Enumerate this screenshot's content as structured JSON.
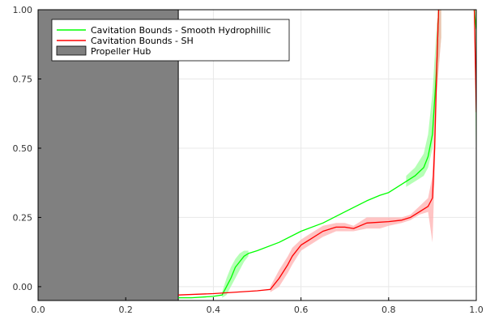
{
  "chart_data": {
    "type": "line",
    "title": "",
    "xlabel": "",
    "ylabel": "",
    "xlim": [
      0,
      1
    ],
    "ylim": [
      -0.05,
      1
    ],
    "grid": true,
    "legend_position": "top-left",
    "x_ticks": [
      {
        "value": 0.0,
        "label": "0.0"
      },
      {
        "value": 0.2,
        "label": "0.2"
      },
      {
        "value": 0.4,
        "label": "0.4"
      },
      {
        "value": 0.6,
        "label": "0.6"
      },
      {
        "value": 0.8,
        "label": "0.8"
      },
      {
        "value": 1.0,
        "label": "1.0"
      }
    ],
    "y_ticks": [
      {
        "value": 0.0,
        "label": "0.00"
      },
      {
        "value": 0.25,
        "label": "0.25"
      },
      {
        "value": 0.5,
        "label": "0.50"
      },
      {
        "value": 0.75,
        "label": "0.75"
      },
      {
        "value": 1.0,
        "label": "1.00"
      }
    ],
    "hub": {
      "name": "Propeller Hub",
      "x_range": [
        0.0,
        0.32
      ],
      "color": "#808080"
    },
    "series": [
      {
        "name": "Cavitation Bounds - Smooth Hydrophillic",
        "color": "#00ff00",
        "band_color": "#9cff9c",
        "points": [
          [
            0.32,
            -0.04
          ],
          [
            0.35,
            -0.04
          ],
          [
            0.4,
            -0.035
          ],
          [
            0.42,
            -0.03
          ],
          [
            0.43,
            0.0
          ],
          [
            0.44,
            0.03
          ],
          [
            0.45,
            0.07
          ],
          [
            0.46,
            0.09
          ],
          [
            0.47,
            0.11
          ],
          [
            0.48,
            0.12
          ],
          [
            0.5,
            0.13
          ],
          [
            0.55,
            0.16
          ],
          [
            0.6,
            0.2
          ],
          [
            0.65,
            0.23
          ],
          [
            0.7,
            0.27
          ],
          [
            0.75,
            0.31
          ],
          [
            0.78,
            0.33
          ],
          [
            0.8,
            0.34
          ],
          [
            0.83,
            0.37
          ],
          [
            0.86,
            0.4
          ],
          [
            0.88,
            0.43
          ],
          [
            0.89,
            0.47
          ],
          [
            0.9,
            0.55
          ],
          [
            0.91,
            0.8
          ],
          [
            0.915,
            1.05
          ]
        ],
        "band": [
          [
            0.42,
            -0.04,
            -0.02
          ],
          [
            0.43,
            -0.03,
            0.03
          ],
          [
            0.44,
            0.0,
            0.07
          ],
          [
            0.45,
            0.03,
            0.1
          ],
          [
            0.46,
            0.06,
            0.12
          ],
          [
            0.47,
            0.09,
            0.13
          ],
          [
            0.48,
            0.11,
            0.13
          ],
          [
            0.84,
            0.36,
            0.4
          ],
          [
            0.86,
            0.38,
            0.43
          ],
          [
            0.88,
            0.4,
            0.48
          ],
          [
            0.89,
            0.43,
            0.55
          ],
          [
            0.9,
            0.5,
            0.7
          ],
          [
            0.91,
            0.72,
            0.95
          ],
          [
            0.92,
            0.9,
            1.05
          ]
        ]
      },
      {
        "name": "Cavitation Bounds - SH",
        "color": "#ff0000",
        "band_color": "#ffb0b0",
        "points": [
          [
            0.32,
            -0.03
          ],
          [
            0.4,
            -0.025
          ],
          [
            0.5,
            -0.015
          ],
          [
            0.53,
            -0.01
          ],
          [
            0.55,
            0.03
          ],
          [
            0.57,
            0.08
          ],
          [
            0.58,
            0.11
          ],
          [
            0.6,
            0.15
          ],
          [
            0.62,
            0.17
          ],
          [
            0.65,
            0.2
          ],
          [
            0.68,
            0.215
          ],
          [
            0.7,
            0.215
          ],
          [
            0.72,
            0.21
          ],
          [
            0.75,
            0.23
          ],
          [
            0.8,
            0.235
          ],
          [
            0.83,
            0.24
          ],
          [
            0.85,
            0.25
          ],
          [
            0.87,
            0.27
          ],
          [
            0.89,
            0.29
          ],
          [
            0.9,
            0.32
          ],
          [
            0.905,
            0.5
          ],
          [
            0.91,
            0.8
          ],
          [
            0.915,
            1.05
          ]
        ],
        "band": [
          [
            0.53,
            -0.02,
            0.0
          ],
          [
            0.55,
            0.0,
            0.06
          ],
          [
            0.57,
            0.05,
            0.11
          ],
          [
            0.58,
            0.08,
            0.14
          ],
          [
            0.6,
            0.13,
            0.17
          ],
          [
            0.62,
            0.15,
            0.19
          ],
          [
            0.65,
            0.18,
            0.22
          ],
          [
            0.68,
            0.2,
            0.23
          ],
          [
            0.7,
            0.2,
            0.23
          ],
          [
            0.72,
            0.2,
            0.22
          ],
          [
            0.75,
            0.21,
            0.25
          ],
          [
            0.78,
            0.21,
            0.25
          ],
          [
            0.8,
            0.22,
            0.25
          ],
          [
            0.83,
            0.23,
            0.25
          ],
          [
            0.85,
            0.24,
            0.26
          ],
          [
            0.87,
            0.26,
            0.29
          ],
          [
            0.89,
            0.27,
            0.32
          ],
          [
            0.9,
            0.16,
            0.4
          ],
          [
            0.905,
            0.4,
            0.7
          ],
          [
            0.91,
            0.7,
            0.95
          ],
          [
            0.92,
            0.9,
            1.05
          ]
        ]
      },
      {
        "name": "",
        "color": "#00ff00",
        "band_color": "#9cff9c",
        "points": [
          [
            0.995,
            1.0
          ],
          [
            1.0,
            0.93
          ]
        ],
        "band": [
          [
            0.995,
            0.98,
            1.0
          ],
          [
            1.0,
            0.4,
            1.0
          ]
        ]
      },
      {
        "name": "",
        "color": "#ff0000",
        "band_color": "#ffb0b0",
        "points": [
          [
            0.995,
            1.05
          ],
          [
            1.0,
            0.63
          ]
        ],
        "band": [
          [
            0.995,
            0.98,
            1.0
          ],
          [
            1.0,
            0.55,
            0.72
          ]
        ]
      }
    ]
  },
  "legend": {
    "items": [
      {
        "label": "Cavitation Bounds - Smooth Hydrophillic",
        "color": "#00ff00",
        "kind": "line"
      },
      {
        "label": "Cavitation Bounds - SH",
        "color": "#ff0000",
        "kind": "line"
      },
      {
        "label": "Propeller Hub",
        "color": "#808080",
        "kind": "patch"
      }
    ]
  }
}
